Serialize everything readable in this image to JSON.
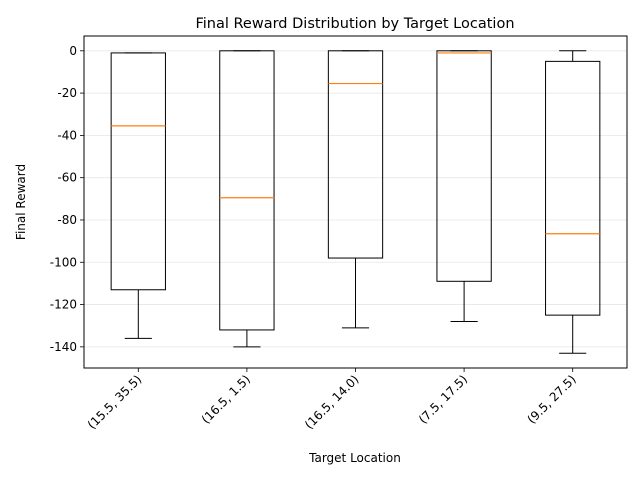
{
  "chart_data": {
    "type": "box",
    "title": "Final Reward Distribution by Target Location",
    "xlabel": "Target Location",
    "ylabel": "Final Reward",
    "categories": [
      "(15.5, 35.5)",
      "(16.5, 1.5)",
      "(16.5, 14.0)",
      "(7.5, 17.5)",
      "(9.5, 27.5)"
    ],
    "boxes": [
      {
        "whislo": -136,
        "q1": -113,
        "med": -35.5,
        "q3": -1,
        "whishi": -1
      },
      {
        "whislo": -140,
        "q1": -132,
        "med": -69.5,
        "q3": 0,
        "whishi": 0
      },
      {
        "whislo": -131,
        "q1": -98,
        "med": -15.5,
        "q3": 0,
        "whishi": 0
      },
      {
        "whislo": -128,
        "q1": -109,
        "med": -1,
        "q3": 0,
        "whishi": 0
      },
      {
        "whislo": -143,
        "q1": -125,
        "med": -86.5,
        "q3": -5,
        "whishi": 0
      }
    ],
    "ylim": [
      -150,
      7
    ],
    "yticks": [
      0,
      -20,
      -40,
      -60,
      -80,
      -100,
      -120,
      -140
    ],
    "grid": "horizontal",
    "colors": {
      "median": "#ff7f0e",
      "box": "#000000",
      "grid": "#e6e6e6"
    }
  }
}
